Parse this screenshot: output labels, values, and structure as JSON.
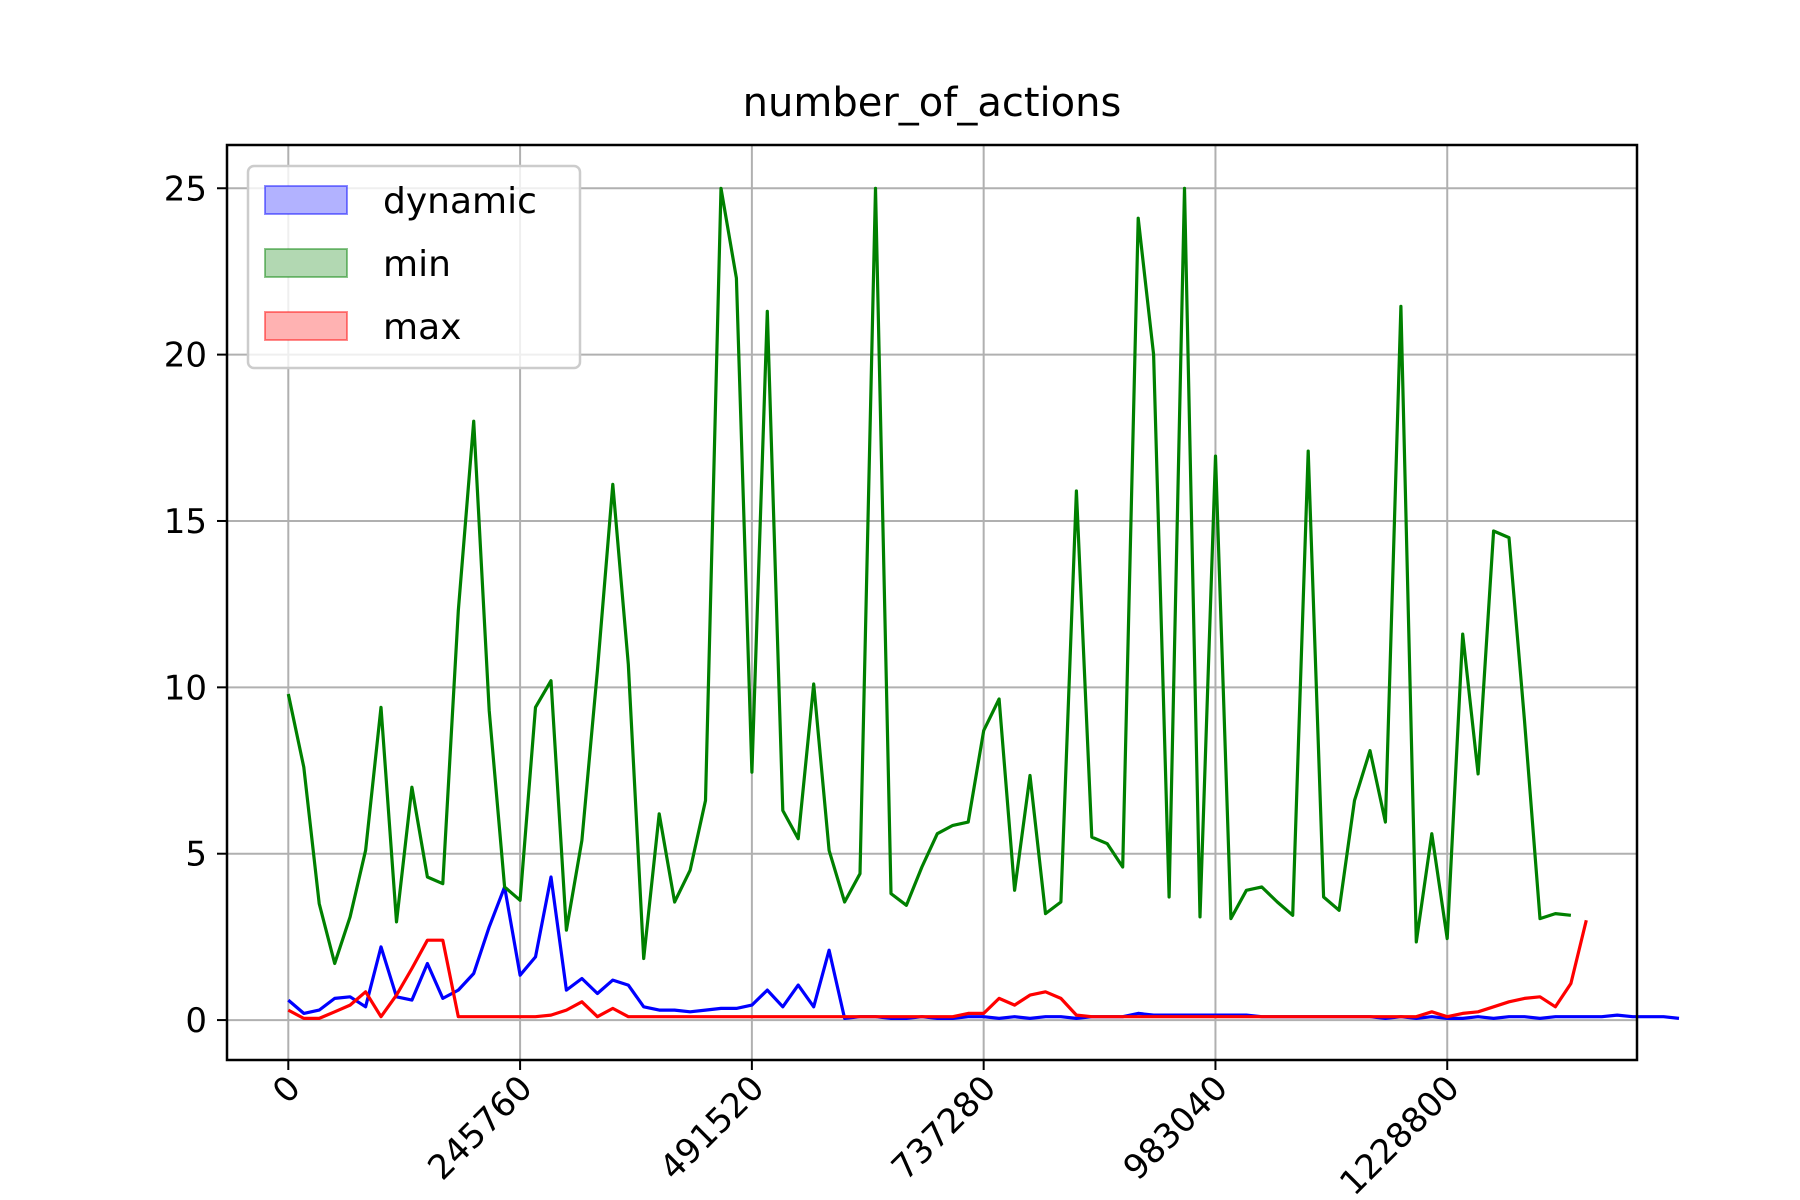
{
  "chart_data": {
    "type": "line",
    "title": "number_of_actions",
    "xlabel": "",
    "ylabel": "",
    "x_ticks": [
      0,
      245760,
      491520,
      737280,
      983040,
      1228800
    ],
    "x_tick_labels": [
      "0",
      "245760",
      "491520",
      "737280",
      "983040",
      "1228800"
    ],
    "y_ticks": [
      0,
      5,
      10,
      15,
      20,
      25
    ],
    "xlim": [
      -65000,
      1430000
    ],
    "ylim": [
      -1.2,
      26.3
    ],
    "grid": true,
    "legend_position": "upper-left",
    "x_step": 16384,
    "series": [
      {
        "name": "dynamic",
        "color": "#0000ff",
        "fill": "#b2b2ff",
        "values": [
          0.6,
          0.2,
          0.3,
          0.65,
          0.7,
          0.4,
          2.2,
          0.7,
          0.6,
          1.7,
          0.65,
          0.9,
          1.4,
          2.8,
          4.0,
          1.35,
          1.9,
          4.3,
          0.9,
          1.25,
          0.8,
          1.2,
          1.05,
          0.4,
          0.3,
          0.3,
          0.25,
          0.3,
          0.35,
          0.35,
          0.45,
          0.9,
          0.4,
          1.05,
          0.4,
          2.1,
          0.05,
          0.1,
          0.1,
          0.05,
          0.05,
          0.1,
          0.05,
          0.05,
          0.1,
          0.1,
          0.05,
          0.1,
          0.05,
          0.1,
          0.1,
          0.05,
          0.1,
          0.1,
          0.1,
          0.2,
          0.15,
          0.15,
          0.15,
          0.15,
          0.15,
          0.15,
          0.15,
          0.1,
          0.1,
          0.1,
          0.1,
          0.1,
          0.1,
          0.1,
          0.1,
          0.05,
          0.1,
          0.05,
          0.1,
          0.05,
          0.05,
          0.1,
          0.05,
          0.1,
          0.1,
          0.05,
          0.1,
          0.1,
          0.1,
          0.1,
          0.15,
          0.1,
          0.1,
          0.1,
          0.05
        ]
      },
      {
        "name": "min",
        "color": "#008000",
        "fill": "#b2d8b2",
        "values": [
          9.8,
          7.6,
          3.5,
          1.7,
          3.1,
          5.1,
          9.4,
          2.95,
          7.0,
          4.3,
          4.1,
          12.3,
          18.0,
          9.3,
          4.0,
          3.6,
          9.4,
          10.2,
          2.7,
          5.4,
          10.5,
          16.1,
          10.7,
          1.85,
          6.2,
          3.55,
          4.5,
          6.6,
          25.0,
          22.3,
          7.45,
          21.3,
          6.3,
          5.45,
          10.1,
          5.1,
          3.55,
          4.4,
          25.0,
          3.8,
          3.45,
          4.6,
          5.6,
          5.85,
          5.95,
          8.7,
          9.65,
          3.9,
          7.35,
          3.2,
          3.55,
          15.9,
          5.5,
          5.3,
          4.6,
          24.1,
          20.0,
          3.7,
          25.0,
          3.1,
          16.95,
          3.05,
          3.9,
          4.0,
          3.55,
          3.15,
          17.1,
          3.7,
          3.3,
          6.6,
          8.1,
          5.95,
          21.45,
          2.35,
          5.6,
          2.45,
          11.6,
          7.4,
          14.7,
          14.5,
          9.0,
          3.05,
          3.2,
          3.15
        ]
      },
      {
        "name": "max",
        "color": "#ff0000",
        "fill": "#ffb2b2",
        "values": [
          0.3,
          0.05,
          0.05,
          0.25,
          0.45,
          0.85,
          0.1,
          0.75,
          1.55,
          2.4,
          2.4,
          0.1,
          0.1,
          0.1,
          0.1,
          0.1,
          0.1,
          0.15,
          0.3,
          0.55,
          0.1,
          0.35,
          0.1,
          0.1,
          0.1,
          0.1,
          0.1,
          0.1,
          0.1,
          0.1,
          0.1,
          0.1,
          0.1,
          0.1,
          0.1,
          0.1,
          0.1,
          0.1,
          0.1,
          0.1,
          0.1,
          0.1,
          0.1,
          0.1,
          0.2,
          0.2,
          0.65,
          0.45,
          0.75,
          0.85,
          0.65,
          0.15,
          0.1,
          0.1,
          0.1,
          0.1,
          0.1,
          0.1,
          0.1,
          0.1,
          0.1,
          0.1,
          0.1,
          0.1,
          0.1,
          0.1,
          0.1,
          0.1,
          0.1,
          0.1,
          0.1,
          0.1,
          0.1,
          0.1,
          0.25,
          0.1,
          0.2,
          0.25,
          0.4,
          0.55,
          0.65,
          0.7,
          0.4,
          1.1,
          3.0
        ]
      }
    ]
  }
}
